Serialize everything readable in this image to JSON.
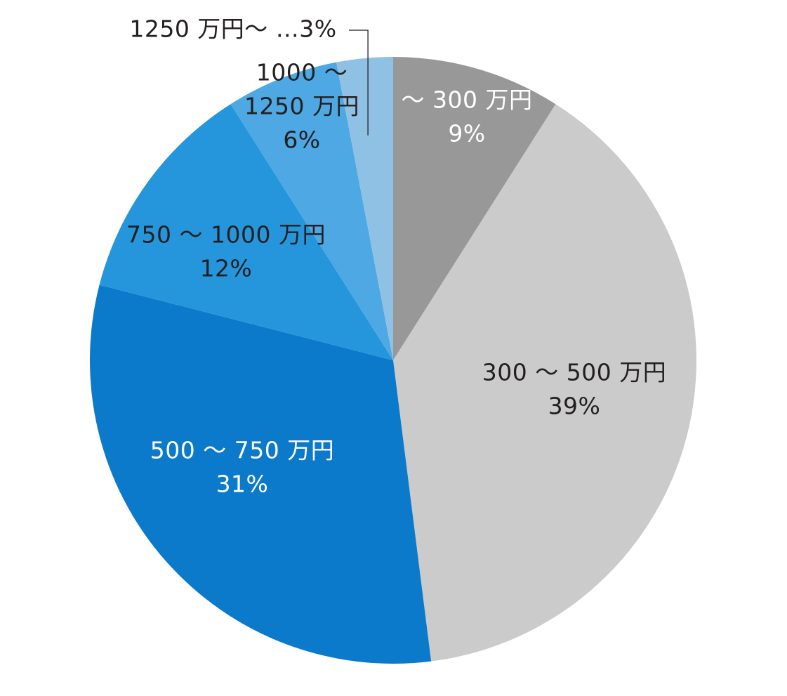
{
  "chart_data": {
    "type": "pie",
    "start_angle_deg": 0,
    "direction": "clockwise",
    "slices": [
      {
        "category": "～300万円",
        "value": 9,
        "label_lines": [
          "～ 300 万円",
          "9%"
        ],
        "color": "#989898",
        "text_color": "#ffffff"
      },
      {
        "category": "300～500万円",
        "value": 39,
        "label_lines": [
          "300 ～ 500 万円",
          "39%"
        ],
        "color": "#cbcbcb",
        "text_color": "#231f20"
      },
      {
        "category": "500～750万円",
        "value": 31,
        "label_lines": [
          "500 ～ 750 万円",
          "31%"
        ],
        "color": "#0c7acb",
        "text_color": "#ffffff"
      },
      {
        "category": "750～1000万円",
        "value": 12,
        "label_lines": [
          "750 ～ 1000 万円",
          "12%"
        ],
        "color": "#2596dc",
        "text_color": "#231f20"
      },
      {
        "category": "1000～1250万円",
        "value": 6,
        "label_lines": [
          "1000 ～",
          "1250 万円",
          "6%"
        ],
        "color": "#4ea8e3",
        "text_color": "#231f20"
      },
      {
        "category": "1250万円～",
        "value": 3,
        "label_lines": [
          "1250 万円～ …3%"
        ],
        "color": "#8fc1e5",
        "text_color": "#231f20",
        "external_label": true
      }
    ]
  }
}
